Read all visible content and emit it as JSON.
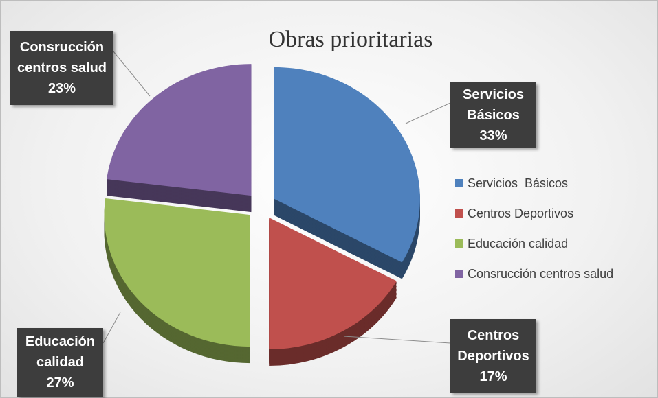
{
  "chart_data": {
    "type": "pie",
    "title": "Obras prioritarias",
    "categories": [
      "Servicios  Básicos",
      "Centros Deportivos",
      "Educación calidad",
      "Consrucción centros salud"
    ],
    "values": [
      33,
      17,
      27,
      23
    ],
    "value_labels": [
      "33%",
      "17%",
      "27%",
      "23%"
    ],
    "colors": [
      "#4f81bd",
      "#c0504d",
      "#9bbb59",
      "#8064a2"
    ],
    "legend": "right"
  }
}
